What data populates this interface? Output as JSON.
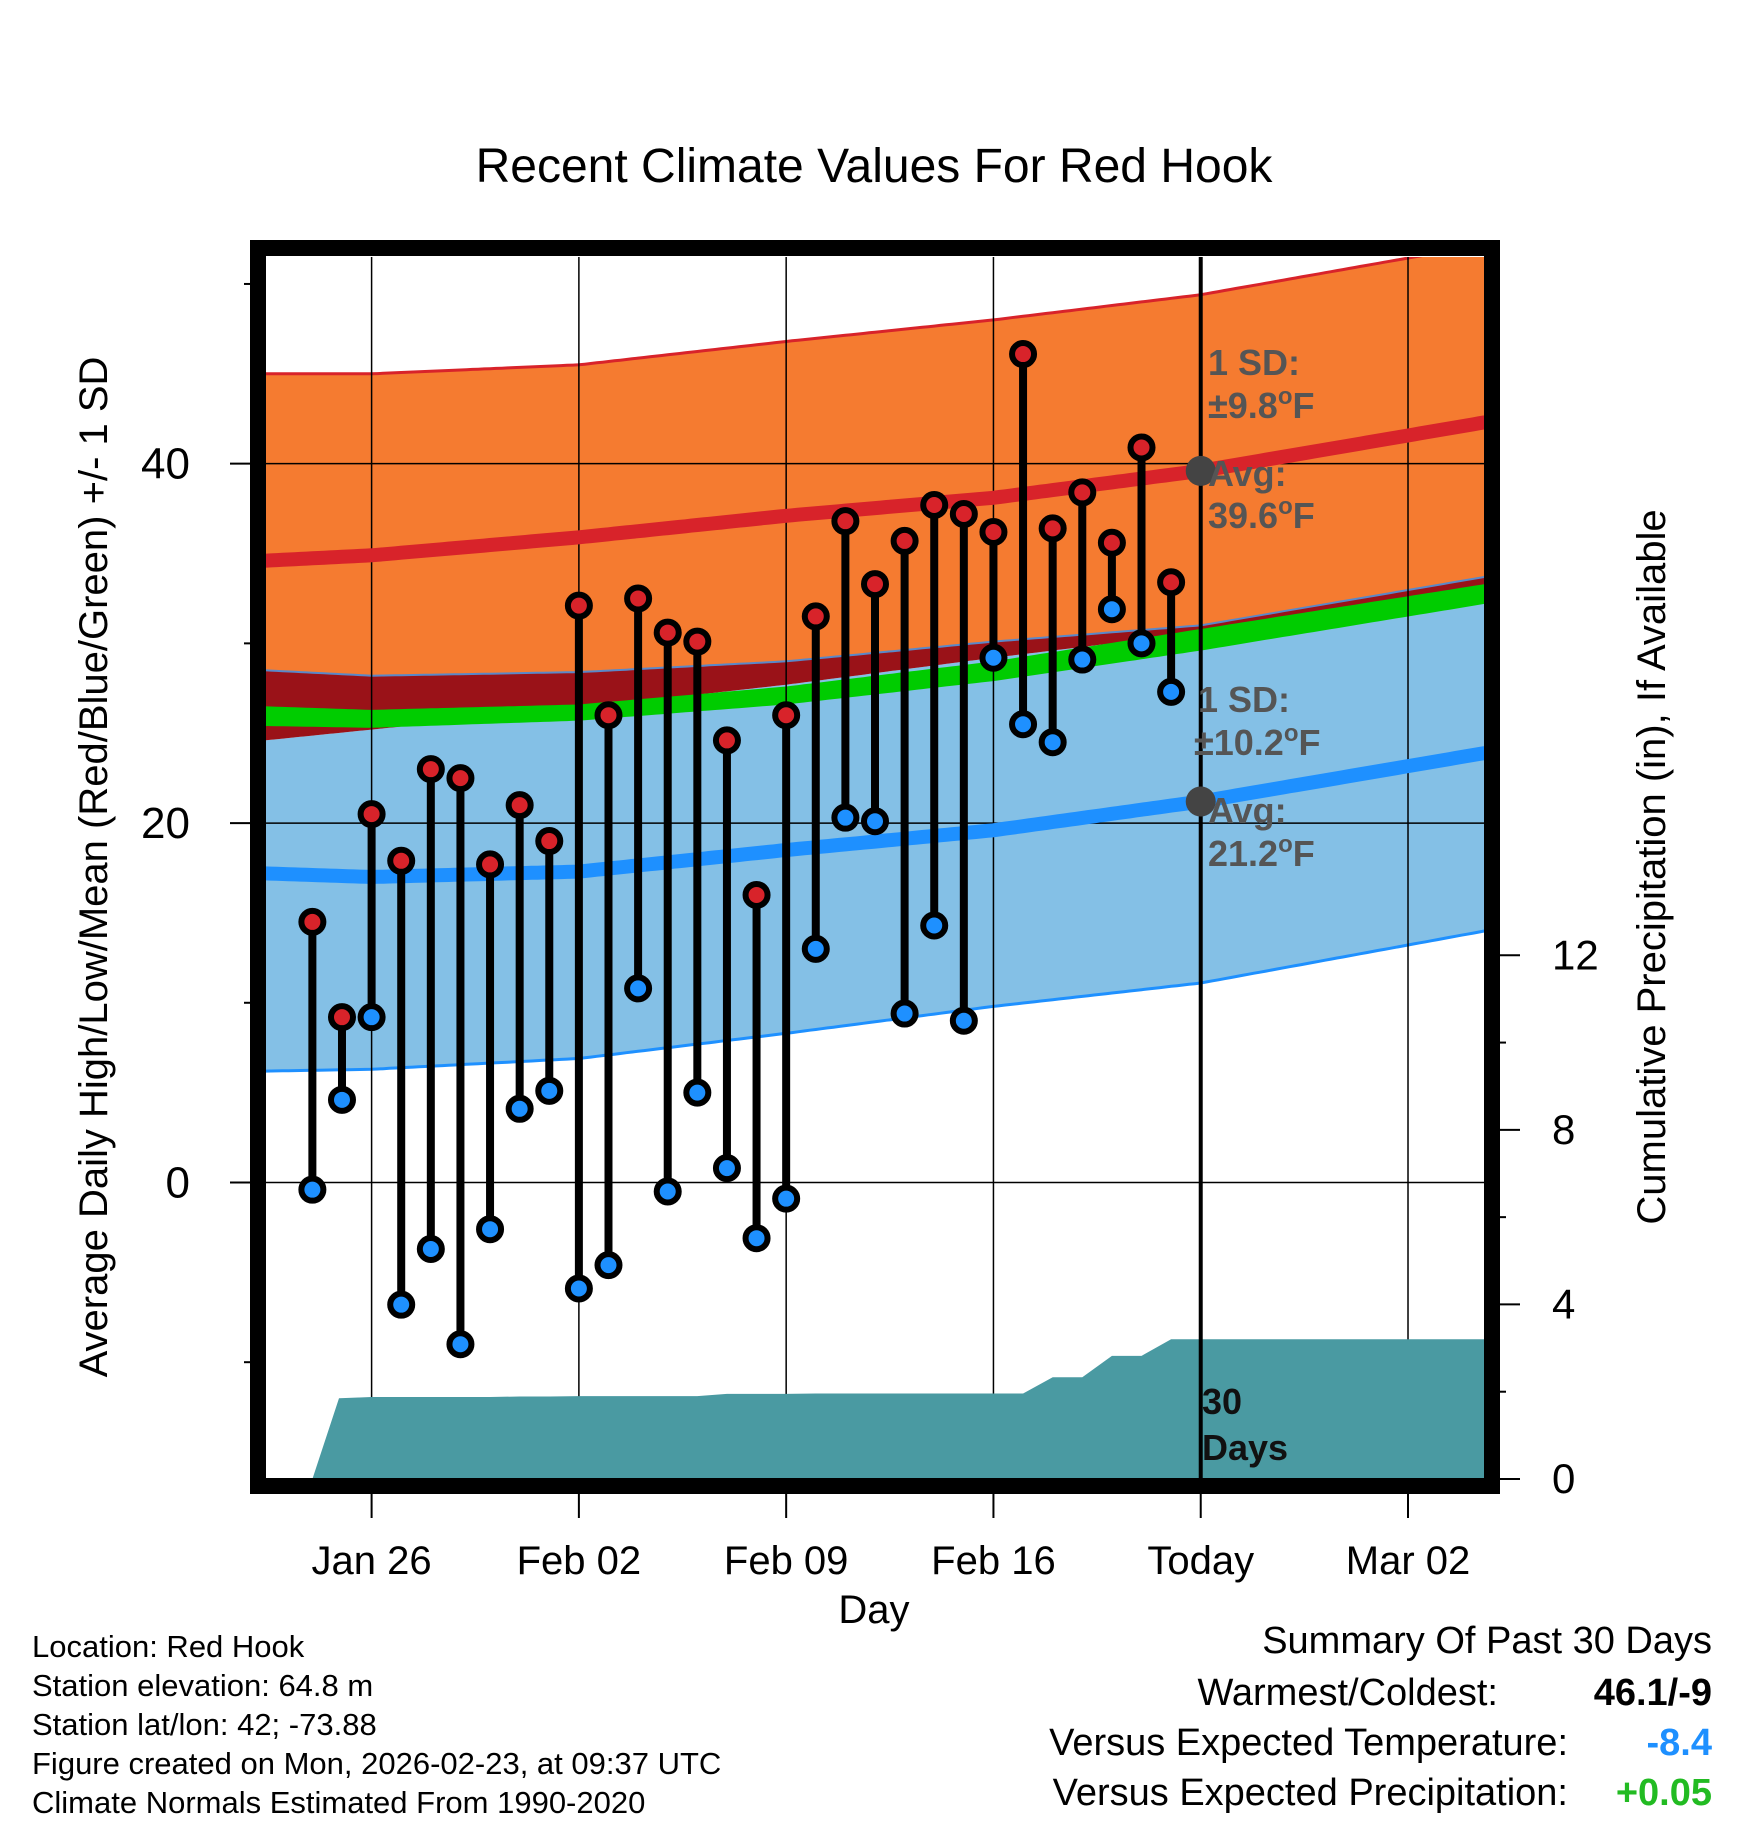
{
  "chart_data": {
    "type": "line",
    "title": "Recent Climate Values For Red Hook",
    "xlabel": "Day",
    "ylabel": "Average Daily High/Low/Mean (Red/Blue/Green) +/- 1 SD",
    "y2label": "Cumulative Precipitation (in), If Available",
    "ylim": [
      -16.5,
      51.5
    ],
    "y2lim": [
      0,
      28
    ],
    "yticks": [
      0,
      20,
      40
    ],
    "y2ticks": [
      0,
      4,
      8,
      12
    ],
    "xlim": [
      -3.6,
      37.6
    ],
    "xticks": [
      {
        "day": 0,
        "label": "Jan 26"
      },
      {
        "day": 7,
        "label": "Feb 02"
      },
      {
        "day": 14,
        "label": "Feb 09"
      },
      {
        "day": 21,
        "label": "Feb 16"
      },
      {
        "day": 28,
        "label": "Today"
      },
      {
        "day": 35,
        "label": "Mar 02"
      }
    ],
    "today_day": 28,
    "days": [
      -2,
      -1,
      0,
      1,
      2,
      3,
      4,
      5,
      6,
      7,
      8,
      9,
      10,
      11,
      12,
      13,
      14,
      15,
      16,
      17,
      18,
      19,
      20,
      21,
      22,
      23,
      24,
      25,
      26,
      27
    ],
    "highs": [
      14.5,
      9.2,
      20.5,
      17.9,
      23.0,
      22.5,
      17.7,
      21.0,
      19.0,
      32.1,
      26.0,
      32.5,
      30.6,
      30.1,
      24.6,
      16.0,
      26.0,
      31.5,
      36.8,
      33.3,
      35.7,
      37.7,
      37.2,
      36.2,
      46.1,
      36.4,
      38.4,
      35.6,
      40.9,
      33.4
    ],
    "lows": [
      -0.4,
      4.6,
      9.2,
      -6.8,
      -3.7,
      -9.0,
      -2.6,
      4.1,
      5.1,
      -5.9,
      -4.6,
      10.8,
      -0.5,
      5.0,
      0.8,
      -3.1,
      -0.9,
      13.0,
      20.3,
      20.1,
      9.4,
      14.3,
      9.0,
      29.2,
      25.5,
      24.5,
      29.1,
      31.9,
      30.0,
      27.3
    ],
    "normal_high": {
      "x": [
        -3.6,
        0,
        7,
        14,
        21,
        28,
        37.6
      ],
      "mean": [
        34.6,
        34.9,
        35.9,
        37.1,
        38.1,
        39.6,
        42.3
      ],
      "upper": [
        45.0,
        45.0,
        45.5,
        46.8,
        48.0,
        49.4,
        52.2
      ],
      "lower": [
        28.5,
        28.2,
        28.4,
        29.0,
        30.1,
        31.0,
        33.7
      ]
    },
    "normal_low": {
      "x": [
        -3.6,
        0,
        7,
        14,
        21,
        28,
        37.6
      ],
      "mean": [
        17.2,
        17.0,
        17.3,
        18.5,
        19.6,
        21.2,
        23.9
      ],
      "upper": [
        24.6,
        25.2,
        26.4,
        27.7,
        29.2,
        30.6,
        32.6
      ],
      "lower": [
        6.2,
        6.3,
        6.9,
        8.3,
        9.8,
        11.1,
        14.0
      ]
    },
    "normal_mean": {
      "x": [
        -3.6,
        0,
        7,
        14,
        21,
        28,
        37.6
      ],
      "upper": [
        26.5,
        26.3,
        26.6,
        27.6,
        29.0,
        30.8,
        33.3
      ],
      "lower": [
        25.4,
        25.3,
        25.7,
        26.6,
        27.9,
        29.6,
        32.2
      ]
    },
    "annotations": {
      "high_sd": "1 SD:",
      "high_sd_val": "±9.8",
      "high_avg": "Avg:",
      "high_avg_val": "39.6",
      "low_sd": "1 SD:",
      "low_sd_val": "±10.2",
      "low_avg": "Avg:",
      "low_avg_val": "21.2",
      "unit": "F",
      "deg": "o",
      "period": "30",
      "period_unit": "Days"
    },
    "precip": {
      "x": [
        -2.0,
        -1.1,
        0,
        1,
        2,
        3,
        4,
        5,
        6,
        7,
        8,
        9,
        10,
        11,
        12,
        13,
        14,
        15,
        16,
        17,
        18,
        19,
        20,
        21,
        22,
        23,
        24,
        25,
        26,
        27,
        28,
        37.6
      ],
      "cumulative": [
        0,
        1.85,
        1.88,
        1.88,
        1.88,
        1.88,
        1.88,
        1.89,
        1.89,
        1.9,
        1.9,
        1.9,
        1.9,
        1.9,
        1.95,
        1.95,
        1.95,
        1.96,
        1.96,
        1.96,
        1.96,
        1.96,
        1.96,
        1.96,
        1.96,
        2.33,
        2.33,
        2.82,
        2.82,
        3.2,
        3.2,
        3.2
      ]
    }
  },
  "info": {
    "location": "Location: Red Hook",
    "elevation": "Station elevation: 64.8 m",
    "latlon": "Station lat/lon: 42; -73.88",
    "created": "Figure created on Mon, 2026-02-23, at 09:37 UTC",
    "normals": "Climate Normals Estimated From 1990-2020"
  },
  "summary": {
    "heading": "Summary Of Past 30 Days",
    "warm_label": "Warmest/Coldest:",
    "warm_value": "46.1/-9",
    "temp_label": "Versus Expected Temperature:",
    "temp_value": "-8.4",
    "precip_label": "Versus Expected Precipitation:",
    "precip_value": "+0.05"
  },
  "colors": {
    "high_band": "#f57b30",
    "high_line": "#d8232a",
    "low_band": "#84c0e6",
    "low_line": "#1e90ff",
    "mean_band": "#00cc00",
    "overlap": "#9a1218",
    "precip": "#4a9aa2",
    "high_dot": "#d8232a",
    "low_dot": "#1e90ff",
    "annot": "#555555",
    "temp_delta": "#1e90ff",
    "precip_delta": "#22bb22"
  }
}
